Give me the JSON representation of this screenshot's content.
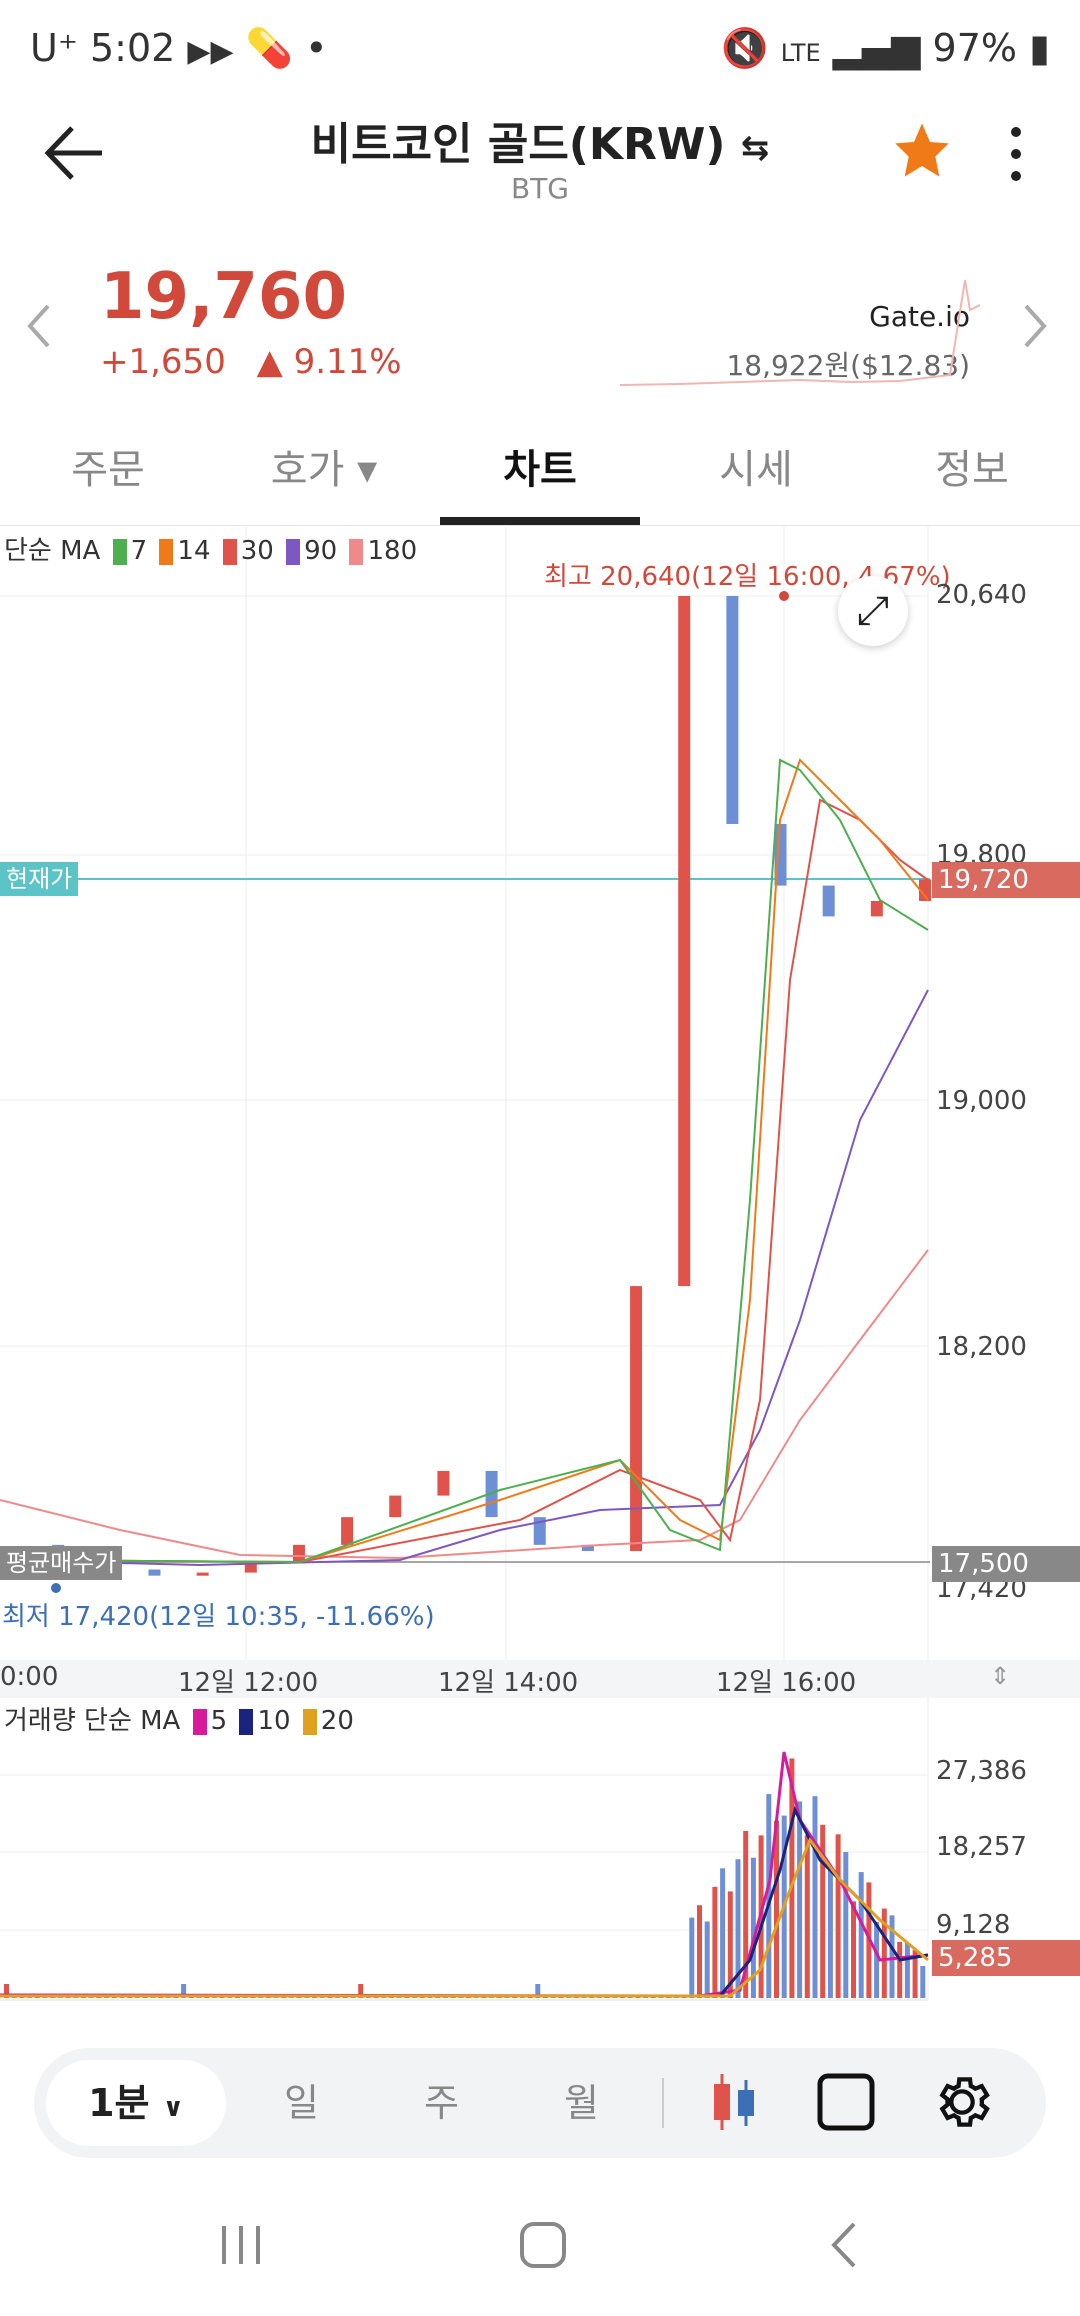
{
  "status_bar": {
    "carrier": "U⁺",
    "time": "5:02",
    "battery": "97%",
    "signal": "LTE"
  },
  "header": {
    "title": "비트코인 골드(KRW)",
    "ticker": "BTG",
    "swap_icon": "swap-icon",
    "favorite_color": "#f07a17"
  },
  "price": {
    "current": "19,760",
    "change": "+1,650",
    "change_pct": "▲ 9.11%",
    "exchange": "Gate.io",
    "exchange_price": "18,922원($12.83)",
    "color_up": "#d0493a"
  },
  "tabs": [
    {
      "label": "주문"
    },
    {
      "label": "호가 ▾"
    },
    {
      "label": "차트"
    },
    {
      "label": "시세"
    },
    {
      "label": "정보"
    }
  ],
  "chart": {
    "ma_legend": {
      "label": "단순 MA",
      "items": [
        {
          "value": "7",
          "color": "#4caf50"
        },
        {
          "value": "14",
          "color": "#f07a17"
        },
        {
          "value": "30",
          "color": "#e0534a"
        },
        {
          "value": "90",
          "color": "#7e57c2"
        },
        {
          "value": "180",
          "color": "#ef8a8a"
        }
      ]
    },
    "high_label": "최고 20,640(12일 16:00, 4.67%)",
    "low_label": "최저 17,420(12일 10:35, -11.66%)",
    "current_badge": "현재가",
    "current_price_badge": "19,720",
    "avg_buy_badge": "평균매수가",
    "avg_buy_price": "17,500",
    "y_labels": [
      "20,640",
      "19,800",
      "19,000",
      "18,200",
      "17,420"
    ],
    "x_labels": [
      "0:00",
      "12일 12:00",
      "12일 14:00",
      "12일 16:00"
    ],
    "volume_legend": {
      "label": "거래량 단순 MA",
      "items": [
        {
          "value": "5",
          "color": "#d81b9c"
        },
        {
          "value": "10",
          "color": "#1a237e"
        },
        {
          "value": "20",
          "color": "#e0a020"
        }
      ]
    },
    "volume_labels": [
      "27,386",
      "18,257",
      "9,128"
    ],
    "volume_current": "5,285"
  },
  "toolbar": {
    "period": "1분",
    "items": [
      "일",
      "주",
      "월"
    ]
  },
  "chart_data": {
    "type": "line",
    "title": "",
    "series": [
      {
        "name": "",
        "values": [
          17560,
          17520,
          17480,
          17460,
          17470,
          17500,
          17560,
          17650,
          17720,
          17800,
          17650,
          17560,
          17540,
          18400,
          20640,
          19900,
          19700,
          19600,
          19650,
          19720
        ]
      }
    ],
    "ylim": [
      17420,
      20640
    ]
  }
}
